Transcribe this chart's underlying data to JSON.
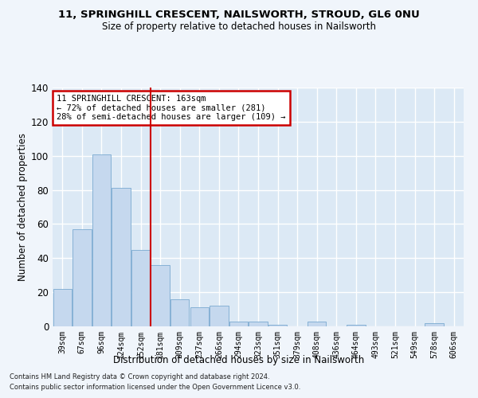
{
  "title1": "11, SPRINGHILL CRESCENT, NAILSWORTH, STROUD, GL6 0NU",
  "title2": "Size of property relative to detached houses in Nailsworth",
  "xlabel": "Distribution of detached houses by size in Nailsworth",
  "ylabel": "Number of detached properties",
  "categories": [
    "39sqm",
    "67sqm",
    "96sqm",
    "124sqm",
    "152sqm",
    "181sqm",
    "209sqm",
    "237sqm",
    "266sqm",
    "294sqm",
    "323sqm",
    "351sqm",
    "379sqm",
    "408sqm",
    "436sqm",
    "464sqm",
    "493sqm",
    "521sqm",
    "549sqm",
    "578sqm",
    "606sqm"
  ],
  "values": [
    22,
    57,
    101,
    81,
    45,
    36,
    16,
    11,
    12,
    3,
    3,
    1,
    0,
    3,
    0,
    1,
    0,
    0,
    0,
    2,
    0
  ],
  "bar_color": "#c5d8ee",
  "bar_edge_color": "#7aaad0",
  "red_line_index": 4,
  "annotation_text": "11 SPRINGHILL CRESCENT: 163sqm\n← 72% of detached houses are smaller (281)\n28% of semi-detached houses are larger (109) →",
  "annotation_box_color": "#ffffff",
  "annotation_box_edge": "#cc0000",
  "ylim": [
    0,
    140
  ],
  "yticks": [
    0,
    20,
    40,
    60,
    80,
    100,
    120,
    140
  ],
  "bg_color": "#dce9f5",
  "grid_color": "#ffffff",
  "fig_bg_color": "#f0f5fb",
  "footer1": "Contains HM Land Registry data © Crown copyright and database right 2024.",
  "footer2": "Contains public sector information licensed under the Open Government Licence v3.0."
}
